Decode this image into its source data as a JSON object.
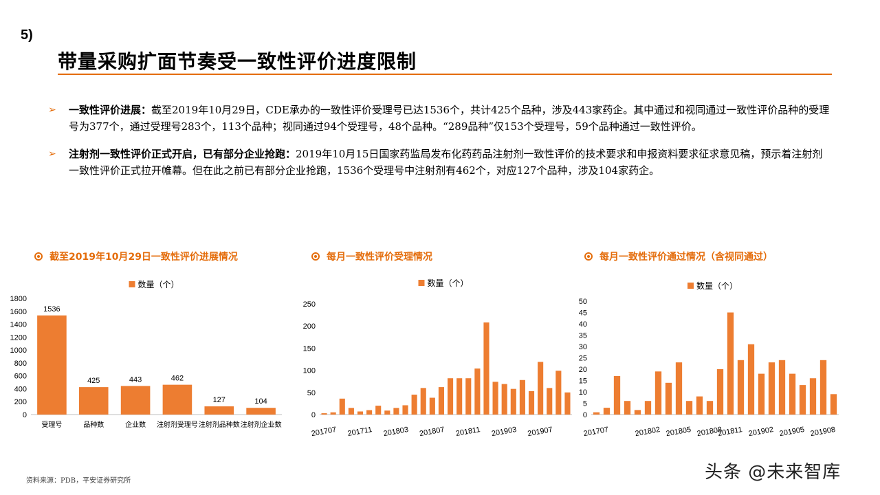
{
  "section_number": "5)",
  "title": "带量采购扩面节奏受一致性评价进度限制",
  "bullets": [
    {
      "lead": "一致性评价进展：",
      "text": "截至2019年10月29日，CDE承办的一致性评价受理号已达1536个，共计425个品种，涉及443家药企。其中通过和视同通过一致性评价品种的受理号为377个，通过受理号283个，113个品种；视同通过94个受理号，48个品种。“289品种”仅153个受理号，59个品种通过一致性评价。"
    },
    {
      "lead": "注射剂一致性评价正式开启，已有部分企业抢跑：",
      "text": "2019年10月15日国家药监局发布化药药品注射剂一致性评价的技术要求和申报资料要求征求意见稿，预示着注射剂一致性评价正式拉开帷幕。但在此之前已有部分企业抢跑，1536个受理号中注射剂有462个，对应127个品种，涉及104家药企。"
    }
  ],
  "panels": [
    {
      "title": "截至2019年10月29日一致性评价进展情况"
    },
    {
      "title": "每月一致性评价受理情况"
    },
    {
      "title": "每月一致性评价通过情况（含视同通过）"
    }
  ],
  "colors": {
    "bar": "#ed7d31",
    "accent": "#e46c0a"
  },
  "chart_data": [
    {
      "type": "bar",
      "title": "截至2019年10月29日一致性评价进展情况",
      "series": [
        {
          "name": "数量（个）",
          "values": [
            1536,
            425,
            443,
            462,
            127,
            104
          ]
        }
      ],
      "categories": [
        "受理号",
        "品种数",
        "企业数",
        "注射剂受理号",
        "注射剂品种数",
        "注射剂企业数"
      ],
      "data_labels": [
        "1536",
        "425",
        "443",
        "462",
        "127",
        "104"
      ],
      "ylim": [
        0,
        1800
      ],
      "yticks": [
        "0",
        "200",
        "400",
        "600",
        "800",
        "1000",
        "1200",
        "1400",
        "1600",
        "1800"
      ],
      "legend": "top-center",
      "grid": false
    },
    {
      "type": "bar",
      "title": "每月一致性评价受理情况",
      "series": [
        {
          "name": "数量（个）",
          "values": [
            3,
            5,
            36,
            15,
            7,
            10,
            20,
            9,
            15,
            21,
            45,
            60,
            38,
            62,
            82,
            82,
            82,
            104,
            208,
            74,
            69,
            58,
            78,
            53,
            119,
            60,
            99,
            50
          ]
        }
      ],
      "x": [
        "201707",
        "201708",
        "201709",
        "201710",
        "201711",
        "201712",
        "201801",
        "201802",
        "201803",
        "201804",
        "201805",
        "201806",
        "201807",
        "201808",
        "201809",
        "201810",
        "201811",
        "201812",
        "201901",
        "201902",
        "201903",
        "201904",
        "201905",
        "201906",
        "201907",
        "201908",
        "201909",
        "201910"
      ],
      "xtick_labels": [
        "201707",
        "201711",
        "201803",
        "201807",
        "201811",
        "201903",
        "201907"
      ],
      "ylim": [
        0,
        250
      ],
      "yticks": [
        "0",
        "50",
        "100",
        "150",
        "200",
        "250"
      ],
      "legend": "top-center",
      "grid": false
    },
    {
      "type": "bar",
      "title": "每月一致性评价通过情况（含视同通过）",
      "series": [
        {
          "name": "数量（个）",
          "values": [
            1,
            3,
            17,
            6,
            2,
            6,
            19,
            14,
            23,
            6,
            8,
            6,
            20,
            45,
            24,
            31,
            18,
            23,
            24,
            18,
            13,
            16,
            24,
            9
          ]
        }
      ],
      "x": [
        "201707",
        "201709",
        "201710",
        "201711",
        "201712",
        "201802",
        "201803",
        "201804",
        "201805",
        "201806",
        "201807",
        "201808",
        "201810",
        "201811",
        "201812",
        "201901",
        "201902",
        "201903",
        "201904",
        "201905",
        "201906",
        "201907",
        "201908",
        "201909"
      ],
      "xtick_labels": [
        "201707",
        "201802",
        "201805",
        "201808",
        "201811",
        "201902",
        "201905",
        "201908"
      ],
      "ylim": [
        0,
        50
      ],
      "yticks": [
        "0",
        "5",
        "10",
        "15",
        "20",
        "25",
        "30",
        "35",
        "40",
        "45",
        "50"
      ],
      "legend": "top-center",
      "grid": false
    }
  ],
  "source": "资料来源：PDB，平安证券研究所",
  "watermark": "头条 @未来智库"
}
